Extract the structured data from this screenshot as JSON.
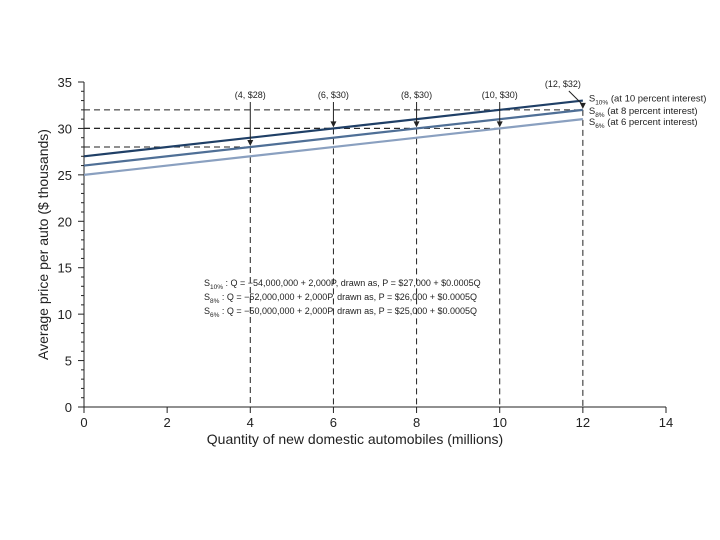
{
  "chart_data": {
    "type": "line",
    "xlabel": "Quantity of new domestic automobiles (millions)",
    "ylabel": "Average price per auto ($ thousands)",
    "xlim": [
      0,
      14
    ],
    "ylim": [
      0,
      35
    ],
    "x_ticks": [
      0,
      2,
      4,
      6,
      8,
      10,
      12,
      14
    ],
    "y_ticks": [
      0,
      5,
      10,
      15,
      20,
      25,
      30,
      35
    ],
    "series": [
      {
        "name": "S10%",
        "label_main": "S",
        "label_sub": "10%",
        "label_note": "(at 10 percent interest)",
        "color": "#1f3f66",
        "x": [
          0,
          12
        ],
        "y": [
          27,
          33
        ]
      },
      {
        "name": "S8%",
        "label_main": "S",
        "label_sub": "8%",
        "label_note": "(at 8 percent interest)",
        "color": "#4f6f96",
        "x": [
          0,
          12
        ],
        "y": [
          26,
          32
        ]
      },
      {
        "name": "S6%",
        "label_main": "S",
        "label_sub": "6%",
        "label_note": "(at 6 percent interest)",
        "color": "#8aa0c0",
        "x": [
          0,
          12
        ],
        "y": [
          25,
          31
        ]
      }
    ],
    "annotations": [
      {
        "text": "(4, $28)",
        "x": 4,
        "y": 28
      },
      {
        "text": "(6, $30)",
        "x": 6,
        "y": 30
      },
      {
        "text": "(8, $30)",
        "x": 8,
        "y": 30
      },
      {
        "text": "(10, $30)",
        "x": 10,
        "y": 30
      },
      {
        "text": "(12, $32)",
        "x": 12,
        "y": 32
      }
    ],
    "equations": [
      {
        "main": "S",
        "sub": "10%",
        "text": " : Q = −54,000,000 + 2,000P, drawn as, P = $27,000 + $0.0005Q"
      },
      {
        "main": "S",
        "sub": "8%",
        "text": " : Q = −52,000,000 + 2,000P, drawn as, P = $26,000 + $0.0005Q"
      },
      {
        "main": "S",
        "sub": "6%",
        "text": " : Q = −50,000,000 + 2,000P, drawn as, P = $25,000 + $0.0005Q"
      }
    ]
  }
}
